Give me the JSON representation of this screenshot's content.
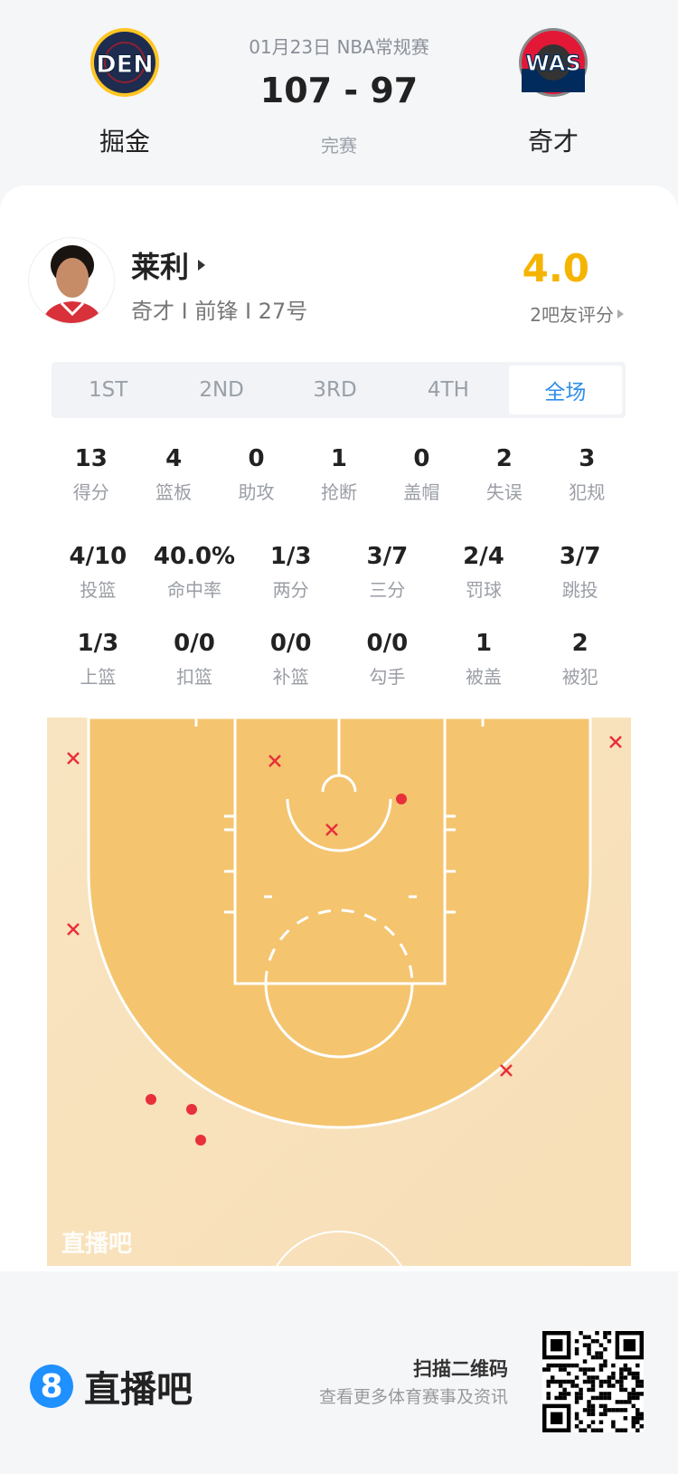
{
  "match": {
    "date_league": "01月23日 NBA常规赛",
    "score": "107 - 97",
    "status": "完赛",
    "home": {
      "abbr": "DEN",
      "name": "掘金",
      "colors": [
        "#0e2240",
        "#fec524"
      ]
    },
    "away": {
      "abbr": "WAS",
      "name": "奇才",
      "colors": [
        "#002b5c",
        "#e31837"
      ]
    }
  },
  "player": {
    "name": "莱利",
    "info": "奇才 I 前锋 I 27号",
    "rating": "4.0",
    "rating_label": "2吧友评分",
    "rating_color": "#f5b400"
  },
  "tabs": [
    {
      "label": "1ST"
    },
    {
      "label": "2ND"
    },
    {
      "label": "3RD"
    },
    {
      "label": "4TH"
    },
    {
      "label": "全场",
      "active": true
    }
  ],
  "stats_row1": [
    {
      "v": "13",
      "l": "得分"
    },
    {
      "v": "4",
      "l": "篮板"
    },
    {
      "v": "0",
      "l": "助攻"
    },
    {
      "v": "1",
      "l": "抢断"
    },
    {
      "v": "0",
      "l": "盖帽"
    },
    {
      "v": "2",
      "l": "失误"
    },
    {
      "v": "3",
      "l": "犯规"
    }
  ],
  "stats_row2": [
    {
      "v": "4/10",
      "l": "投篮"
    },
    {
      "v": "40.0%",
      "l": "命中率"
    },
    {
      "v": "1/3",
      "l": "两分"
    },
    {
      "v": "3/7",
      "l": "三分"
    },
    {
      "v": "2/4",
      "l": "罚球"
    },
    {
      "v": "3/7",
      "l": "跳投"
    }
  ],
  "stats_row3": [
    {
      "v": "1/3",
      "l": "上篮"
    },
    {
      "v": "0/0",
      "l": "扣篮"
    },
    {
      "v": "0/0",
      "l": "补篮"
    },
    {
      "v": "0/0",
      "l": "勾手"
    },
    {
      "v": "1",
      "l": "被盖"
    },
    {
      "v": "2",
      "l": "被犯"
    }
  ],
  "shot_chart": {
    "watermark": "直播吧",
    "made_color": "#e8303a",
    "shots": [
      "missed",
      "missed",
      "missed",
      "missed",
      "missed",
      "missed",
      "made",
      "made",
      "made",
      "made"
    ]
  },
  "footer": {
    "brand": "直播吧",
    "brand_color": "#1e90ff",
    "qr_title": "扫描二维码",
    "qr_sub": "查看更多体育赛事及资讯"
  }
}
